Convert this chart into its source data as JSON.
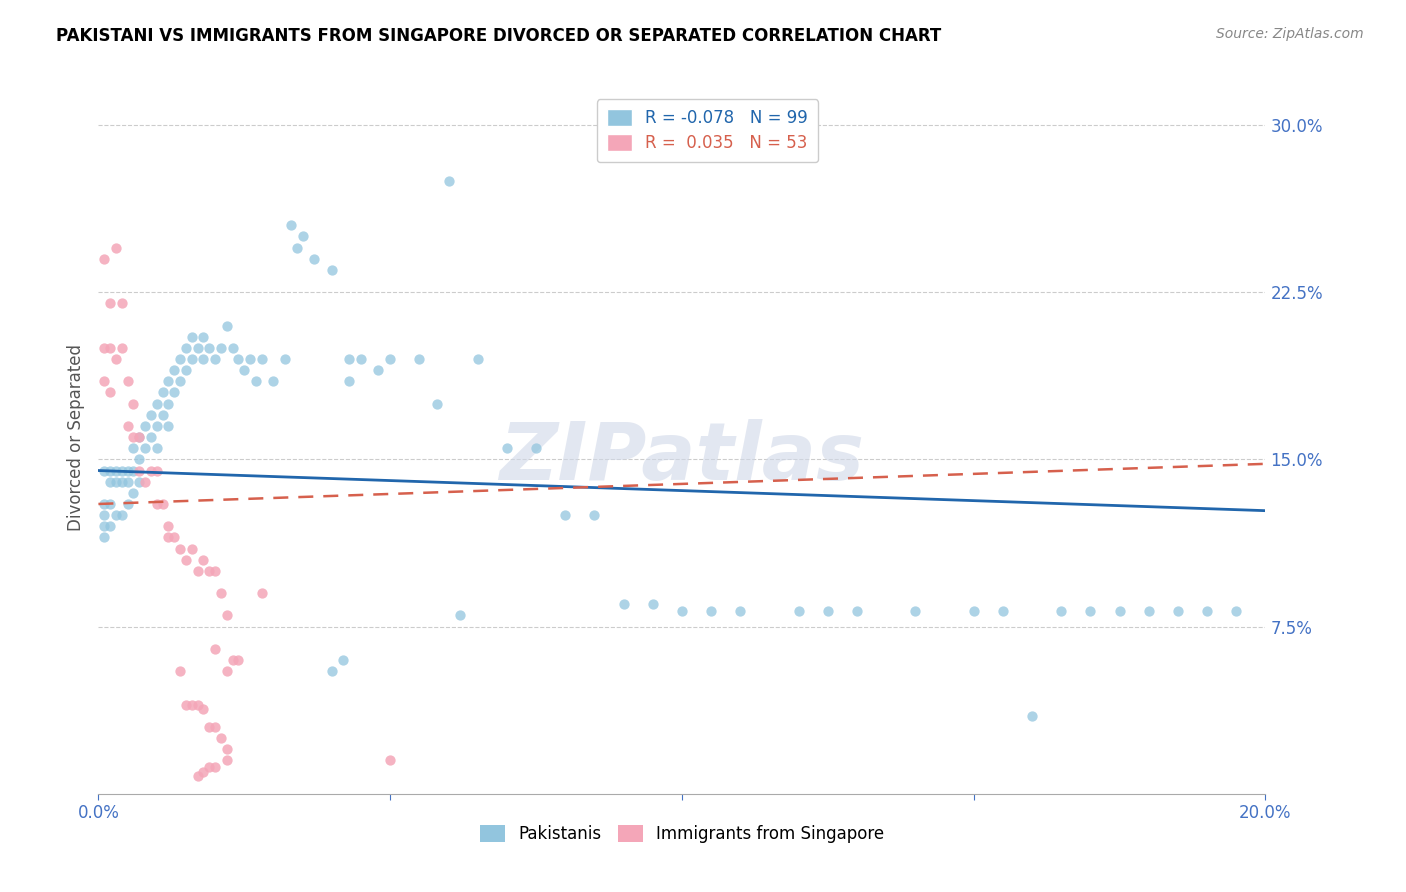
{
  "title": "PAKISTANI VS IMMIGRANTS FROM SINGAPORE DIVORCED OR SEPARATED CORRELATION CHART",
  "source": "Source: ZipAtlas.com",
  "ylabel": "Divorced or Separated",
  "right_ytick_vals": [
    0.3,
    0.225,
    0.15,
    0.075
  ],
  "xlim": [
    0.0,
    0.2
  ],
  "ylim": [
    0.0,
    0.32
  ],
  "color_blue": "#92c5de",
  "color_pink": "#f4a6b8",
  "trendline_blue": "#2166ac",
  "trendline_pink": "#d6604d",
  "watermark": "ZIPatlas",
  "pak_x": [
    0.001,
    0.001,
    0.001,
    0.001,
    0.001,
    0.002,
    0.002,
    0.002,
    0.002,
    0.003,
    0.003,
    0.003,
    0.004,
    0.004,
    0.004,
    0.005,
    0.005,
    0.005,
    0.006,
    0.006,
    0.006,
    0.007,
    0.007,
    0.007,
    0.008,
    0.008,
    0.009,
    0.009,
    0.01,
    0.01,
    0.01,
    0.011,
    0.011,
    0.012,
    0.012,
    0.012,
    0.013,
    0.013,
    0.014,
    0.014,
    0.015,
    0.015,
    0.016,
    0.016,
    0.017,
    0.018,
    0.018,
    0.019,
    0.02,
    0.021,
    0.022,
    0.023,
    0.024,
    0.025,
    0.026,
    0.027,
    0.028,
    0.03,
    0.032,
    0.033,
    0.034,
    0.035,
    0.037,
    0.04,
    0.043,
    0.043,
    0.045,
    0.048,
    0.05,
    0.055,
    0.058,
    0.06,
    0.065,
    0.07,
    0.075,
    0.08,
    0.085,
    0.09,
    0.095,
    0.1,
    0.105,
    0.11,
    0.12,
    0.125,
    0.13,
    0.14,
    0.15,
    0.155,
    0.16,
    0.165,
    0.17,
    0.175,
    0.18,
    0.185,
    0.19,
    0.195,
    0.04,
    0.042,
    0.062
  ],
  "pak_y": [
    0.145,
    0.13,
    0.125,
    0.12,
    0.115,
    0.145,
    0.14,
    0.13,
    0.12,
    0.145,
    0.14,
    0.125,
    0.145,
    0.14,
    0.125,
    0.145,
    0.14,
    0.13,
    0.155,
    0.145,
    0.135,
    0.16,
    0.15,
    0.14,
    0.165,
    0.155,
    0.17,
    0.16,
    0.175,
    0.165,
    0.155,
    0.18,
    0.17,
    0.185,
    0.175,
    0.165,
    0.19,
    0.18,
    0.195,
    0.185,
    0.2,
    0.19,
    0.205,
    0.195,
    0.2,
    0.205,
    0.195,
    0.2,
    0.195,
    0.2,
    0.21,
    0.2,
    0.195,
    0.19,
    0.195,
    0.185,
    0.195,
    0.185,
    0.195,
    0.255,
    0.245,
    0.25,
    0.24,
    0.235,
    0.195,
    0.185,
    0.195,
    0.19,
    0.195,
    0.195,
    0.175,
    0.275,
    0.195,
    0.155,
    0.155,
    0.125,
    0.125,
    0.085,
    0.085,
    0.082,
    0.082,
    0.082,
    0.082,
    0.082,
    0.082,
    0.082,
    0.082,
    0.082,
    0.035,
    0.082,
    0.082,
    0.082,
    0.082,
    0.082,
    0.082,
    0.082,
    0.055,
    0.06,
    0.08
  ],
  "sg_x": [
    0.001,
    0.001,
    0.001,
    0.002,
    0.002,
    0.002,
    0.003,
    0.003,
    0.004,
    0.004,
    0.005,
    0.005,
    0.006,
    0.006,
    0.007,
    0.007,
    0.008,
    0.009,
    0.01,
    0.01,
    0.011,
    0.012,
    0.012,
    0.013,
    0.014,
    0.015,
    0.016,
    0.017,
    0.018,
    0.019,
    0.02,
    0.021,
    0.022,
    0.022,
    0.023,
    0.024,
    0.014,
    0.015,
    0.016,
    0.017,
    0.018,
    0.019,
    0.02,
    0.021,
    0.022,
    0.022,
    0.02,
    0.019,
    0.018,
    0.017,
    0.02,
    0.028,
    0.05
  ],
  "sg_y": [
    0.24,
    0.2,
    0.185,
    0.22,
    0.2,
    0.18,
    0.245,
    0.195,
    0.22,
    0.2,
    0.185,
    0.165,
    0.175,
    0.16,
    0.16,
    0.145,
    0.14,
    0.145,
    0.145,
    0.13,
    0.13,
    0.12,
    0.115,
    0.115,
    0.11,
    0.105,
    0.11,
    0.1,
    0.105,
    0.1,
    0.1,
    0.09,
    0.055,
    0.08,
    0.06,
    0.06,
    0.055,
    0.04,
    0.04,
    0.04,
    0.038,
    0.03,
    0.03,
    0.025,
    0.02,
    0.015,
    0.012,
    0.012,
    0.01,
    0.008,
    0.065,
    0.09,
    0.015
  ]
}
